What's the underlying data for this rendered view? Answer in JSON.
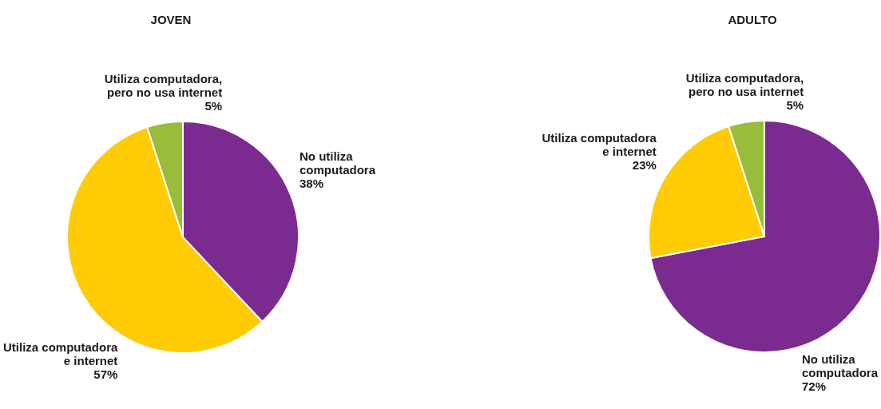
{
  "chart_data": [
    {
      "type": "pie",
      "title": "JOVEN",
      "categories": [
        "No utiliza computadora",
        "Utiliza computadora e internet",
        "Utiliza computadora, pero no usa internet"
      ],
      "values": [
        38,
        57,
        5
      ],
      "value_labels": [
        "38%",
        "57%",
        "5%"
      ],
      "colors": [
        "#7b2b8f",
        "#ffcb05",
        "#99bc3a"
      ]
    },
    {
      "type": "pie",
      "title": "ADULTO",
      "categories": [
        "No utiliza computadora",
        "Utiliza computadora e internet",
        "Utiliza computadora, pero no usa internet"
      ],
      "values": [
        72,
        23,
        5
      ],
      "value_labels": [
        "72%",
        "23%",
        "5%"
      ],
      "colors": [
        "#7b2b8f",
        "#ffcb05",
        "#99bc3a"
      ]
    }
  ]
}
